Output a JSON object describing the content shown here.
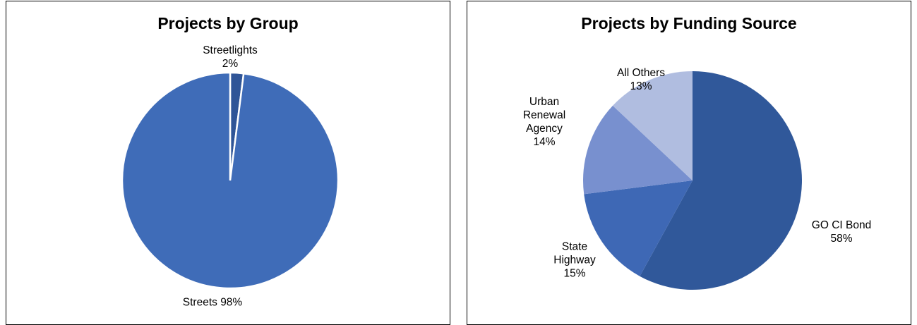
{
  "chart_data": [
    {
      "type": "pie",
      "title": "Projects by Group",
      "categories": [
        "Streetlights",
        "Streets"
      ],
      "values": [
        2,
        98
      ],
      "value_labels": [
        "2%",
        "98%"
      ],
      "colors": [
        "#2f5597",
        "#3f6cb8"
      ]
    },
    {
      "type": "pie",
      "title": "Projects by Funding Source",
      "categories": [
        "GO CI Bond",
        "State Highway",
        "Urban Renewal Agency",
        "All Others"
      ],
      "values": [
        58,
        15,
        14,
        13
      ],
      "value_labels": [
        "58%",
        "15%",
        "14%",
        "13%"
      ],
      "colors": [
        "#30589a",
        "#3e68b5",
        "#7890cf",
        "#b0bde0"
      ]
    }
  ]
}
